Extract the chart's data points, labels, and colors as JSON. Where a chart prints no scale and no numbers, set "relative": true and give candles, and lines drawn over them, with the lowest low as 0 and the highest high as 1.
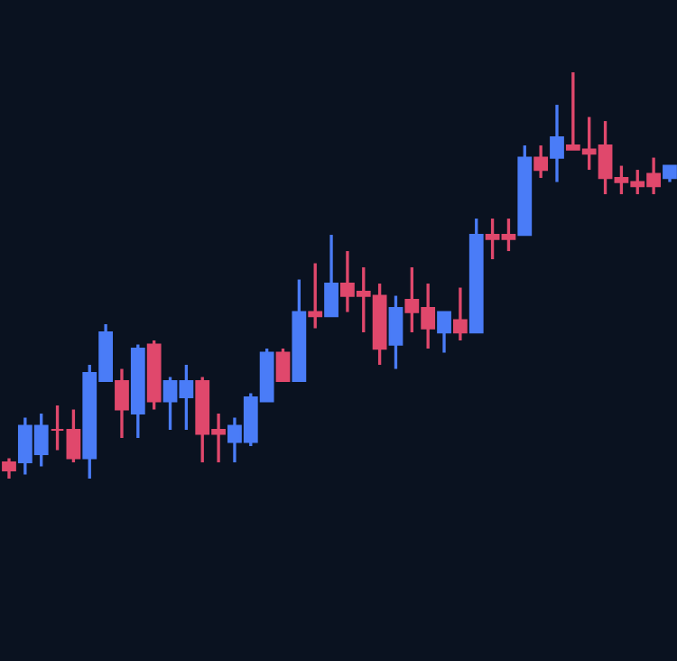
{
  "chart_data": {
    "type": "candlestick",
    "relative": true,
    "categories": [
      null,
      null,
      null,
      null,
      null,
      null,
      null,
      null,
      null,
      null,
      null,
      null,
      null,
      null,
      null,
      null,
      null,
      null,
      null,
      null,
      null,
      null,
      null,
      null,
      null,
      null,
      null,
      null,
      null,
      null,
      null,
      null,
      null,
      null,
      null,
      null,
      null,
      null,
      null,
      null,
      null,
      null
    ],
    "ohlc": [
      [
        0.04,
        0.05,
        0,
        0.02
      ],
      [
        0.04,
        0.15,
        0.01,
        0.13
      ],
      [
        0.06,
        0.16,
        0.03,
        0.13
      ],
      [
        0.12,
        0.18,
        0.07,
        0.12
      ],
      [
        0.12,
        0.17,
        0.04,
        0.05
      ],
      [
        0.05,
        0.28,
        0,
        0.26
      ],
      [
        0.24,
        0.38,
        0.24,
        0.36
      ],
      [
        0.24,
        0.27,
        0.1,
        0.17
      ],
      [
        0.16,
        0.33,
        0.1,
        0.32
      ],
      [
        0.33,
        0.34,
        0.17,
        0.19
      ],
      [
        0.19,
        0.25,
        0.12,
        0.24
      ],
      [
        0.2,
        0.28,
        0.12,
        0.24
      ],
      [
        0.24,
        0.25,
        0.04,
        0.11
      ],
      [
        0.12,
        0.16,
        0.04,
        0.11
      ],
      [
        0.09,
        0.15,
        0.04,
        0.13
      ],
      [
        0.09,
        0.21,
        0.08,
        0.2
      ],
      [
        0.19,
        0.32,
        0.19,
        0.31
      ],
      [
        0.31,
        0.32,
        0.24,
        0.24
      ],
      [
        0.24,
        0.49,
        0.24,
        0.41
      ],
      [
        0.41,
        0.53,
        0.37,
        0.4
      ],
      [
        0.4,
        0.6,
        0.4,
        0.48
      ],
      [
        0.48,
        0.56,
        0.41,
        0.45
      ],
      [
        0.46,
        0.52,
        0.36,
        0.45
      ],
      [
        0.45,
        0.48,
        0.28,
        0.32
      ],
      [
        0.33,
        0.45,
        0.27,
        0.42
      ],
      [
        0.44,
        0.52,
        0.36,
        0.41
      ],
      [
        0.42,
        0.48,
        0.32,
        0.37
      ],
      [
        0.36,
        0.41,
        0.31,
        0.41
      ],
      [
        0.39,
        0.47,
        0.34,
        0.36
      ],
      [
        0.36,
        0.64,
        0.36,
        0.6
      ],
      [
        0.6,
        0.64,
        0.54,
        0.59
      ],
      [
        0.6,
        0.64,
        0.56,
        0.59
      ],
      [
        0.6,
        0.82,
        0.6,
        0.79
      ],
      [
        0.79,
        0.82,
        0.74,
        0.76
      ],
      [
        0.79,
        0.92,
        0.73,
        0.84
      ],
      [
        0.82,
        1,
        0.81,
        0.81
      ],
      [
        0.81,
        0.89,
        0.76,
        0.8
      ],
      [
        0.82,
        0.88,
        0.7,
        0.74
      ],
      [
        0.74,
        0.77,
        0.7,
        0.73
      ],
      [
        0.73,
        0.76,
        0.7,
        0.72
      ],
      [
        0.75,
        0.79,
        0.7,
        0.72
      ],
      [
        0.74,
        0.77,
        0.73,
        0.77
      ]
    ],
    "colors": [
      "#e0486c",
      "#4a7cf7",
      "#4a7cf7",
      "#e0486c",
      "#e0486c",
      "#4a7cf7",
      "#4a7cf7",
      "#e0486c",
      "#4a7cf7",
      "#e0486c",
      "#4a7cf7",
      "#4a7cf7",
      "#e0486c",
      "#e0486c",
      "#4a7cf7",
      "#4a7cf7",
      "#4a7cf7",
      "#e0486c",
      "#4a7cf7",
      "#e0486c",
      "#4a7cf7",
      "#e0486c",
      "#e0486c",
      "#e0486c",
      "#4a7cf7",
      "#e0486c",
      "#e0486c",
      "#4a7cf7",
      "#e0486c",
      "#4a7cf7",
      "#e0486c",
      "#e0486c",
      "#4a7cf7",
      "#e0486c",
      "#4a7cf7",
      "#e0486c",
      "#e0486c",
      "#e0486c",
      "#e0486c",
      "#e0486c",
      "#e0486c",
      "#4a7cf7"
    ]
  }
}
